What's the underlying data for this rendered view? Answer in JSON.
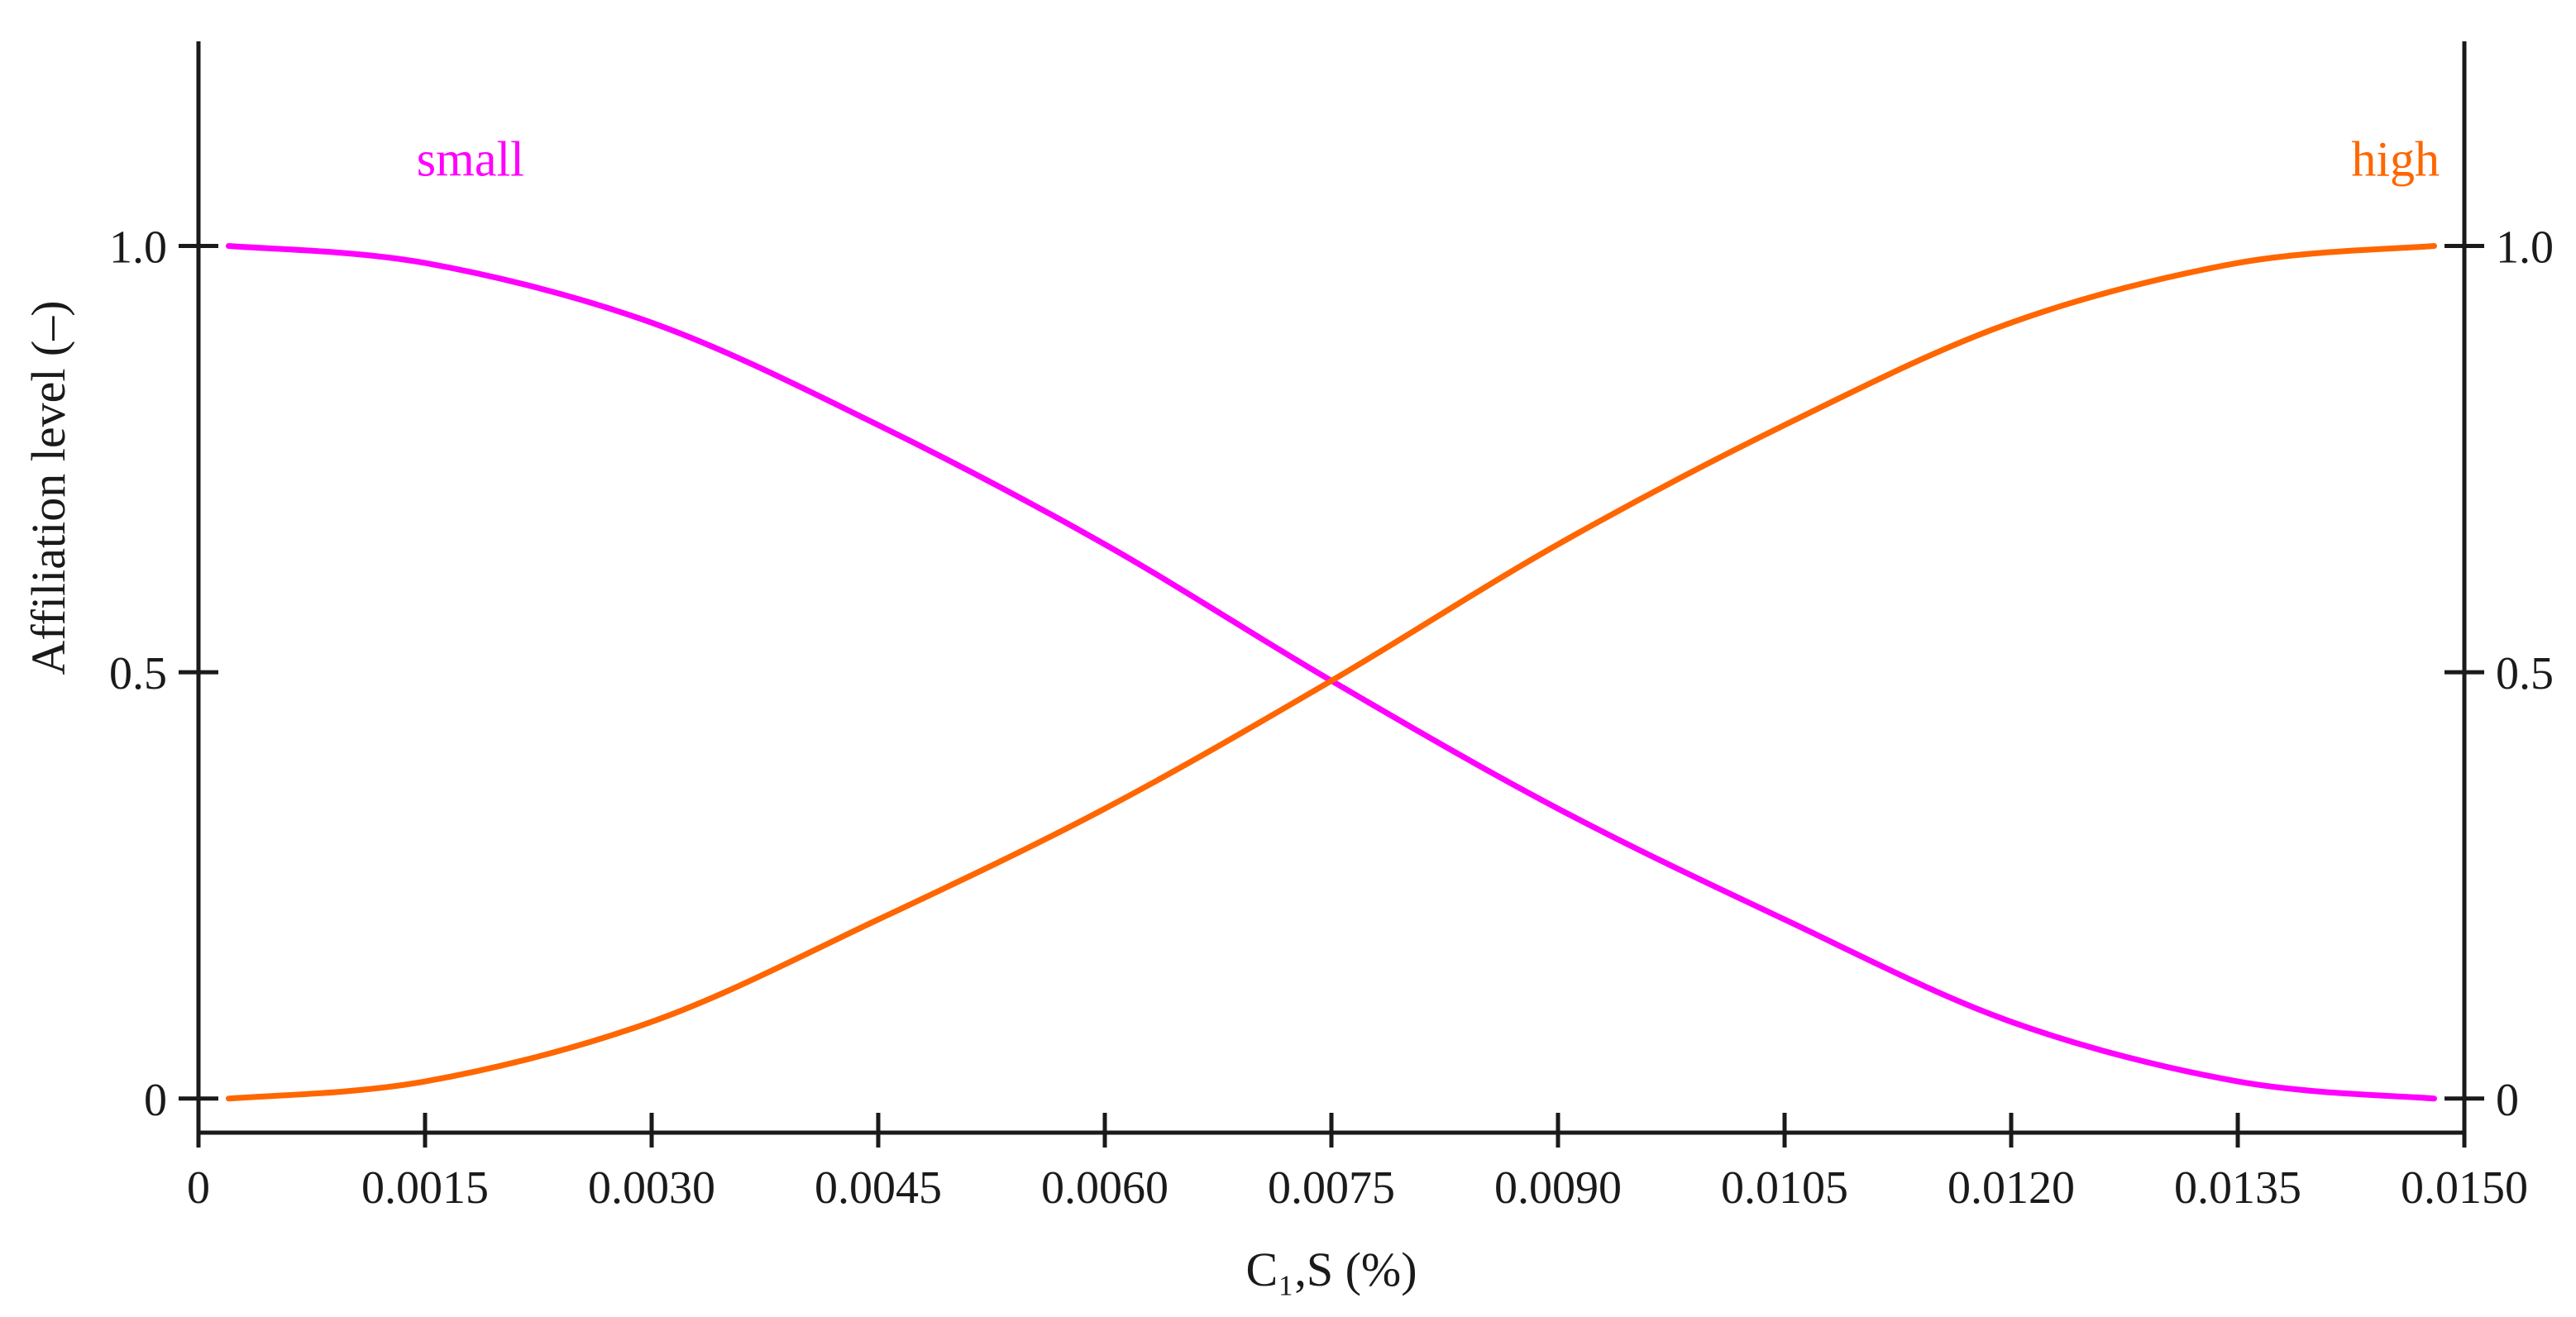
{
  "chart_data": {
    "type": "line",
    "xlabel": "C₁,S (%)",
    "ylabel": "Affiliation level (–)",
    "xlim": [
      0,
      0.015
    ],
    "ylim": [
      -0.04,
      1.24
    ],
    "x_ticks": [
      "0",
      "0.0015",
      "0.0030",
      "0.0045",
      "0.0060",
      "0.0075",
      "0.0090",
      "0.0105",
      "0.0120",
      "0.0135",
      "0.0150"
    ],
    "y_ticks_left": [
      "0",
      "0.5",
      "1.0"
    ],
    "y_ticks_right": [
      "0",
      "0.5",
      "1.0"
    ],
    "grid": false,
    "legend": "none",
    "series": [
      {
        "name": "small",
        "color": "#ff00ff",
        "x": [
          0.0002,
          0.0015,
          0.003,
          0.0045,
          0.006,
          0.0075,
          0.009,
          0.0105,
          0.012,
          0.0135,
          0.0148
        ],
        "y": [
          1.0,
          0.98,
          0.91,
          0.79,
          0.65,
          0.49,
          0.34,
          0.21,
          0.09,
          0.02,
          0.0
        ]
      },
      {
        "name": "high",
        "color": "#ff6600",
        "x": [
          0.0002,
          0.0015,
          0.003,
          0.0045,
          0.006,
          0.0075,
          0.009,
          0.0105,
          0.012,
          0.0135,
          0.0148
        ],
        "y": [
          0.0,
          0.02,
          0.09,
          0.21,
          0.34,
          0.49,
          0.65,
          0.79,
          0.91,
          0.98,
          1.0
        ]
      }
    ],
    "series_label_positions": [
      "top-left",
      "top-right"
    ]
  }
}
